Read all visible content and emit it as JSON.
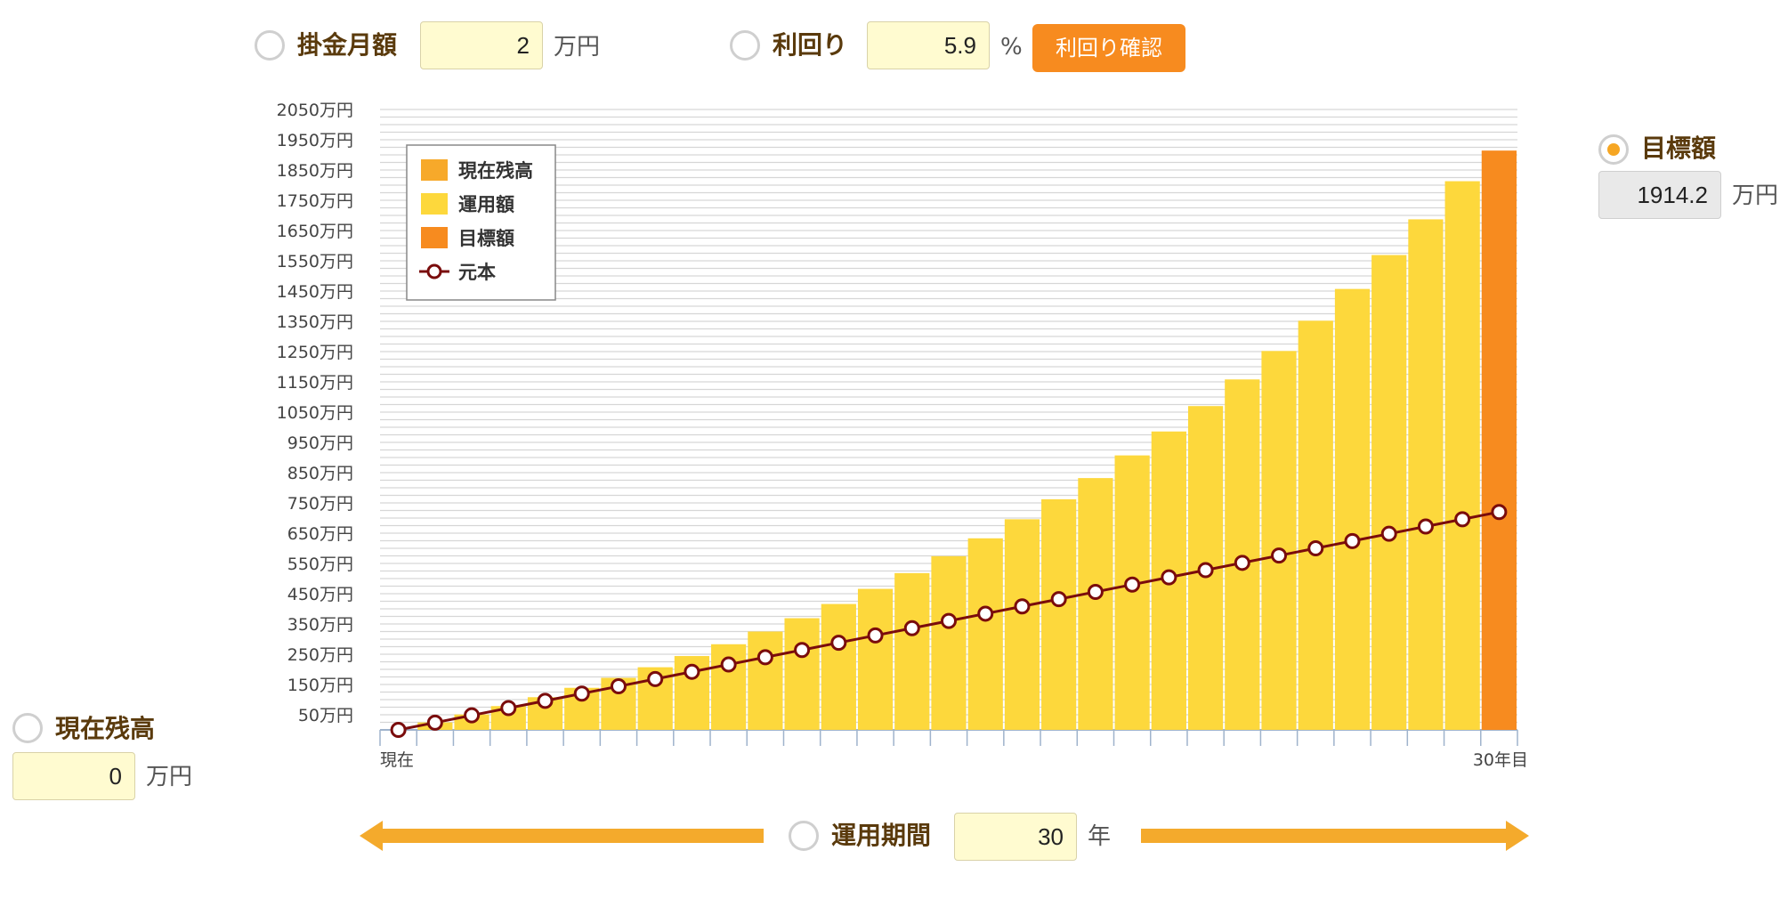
{
  "controls": {
    "monthly": {
      "label": "掛金月額",
      "value": "2",
      "unit": "万円"
    },
    "rate": {
      "label": "利回り",
      "value": "5.9",
      "unit": "%",
      "check_button": "利回り確認"
    },
    "target": {
      "label": "目標額",
      "value": "1914.2",
      "unit": "万円",
      "selected": true
    },
    "current": {
      "label": "現在残高",
      "value": "0",
      "unit": "万円"
    },
    "period": {
      "label": "運用期間",
      "value": "30",
      "unit": "年"
    }
  },
  "colors": {
    "current_balance": "#f7a92a",
    "managed": "#fdd83c",
    "target": "#f78b1f",
    "principal": "#7a0c0c",
    "arrow": "#f4aa2c",
    "radio_selected": "#f6a623"
  },
  "icons": [
    "radio-icon",
    "arrow-left-icon",
    "arrow-right-icon"
  ],
  "chart_data": {
    "type": "bar",
    "y_unit": "万円",
    "ylim": [
      0,
      2050
    ],
    "yticks": [
      50,
      150,
      250,
      350,
      450,
      550,
      650,
      750,
      850,
      950,
      1050,
      1150,
      1250,
      1350,
      1450,
      1550,
      1650,
      1750,
      1850,
      1950,
      2050
    ],
    "ytick_labels": [
      "50万円",
      "150万円",
      "250万円",
      "350万円",
      "450万円",
      "550万円",
      "650万円",
      "750万円",
      "850万円",
      "950万円",
      "1050万円",
      "1150万円",
      "1250万円",
      "1350万円",
      "1450万円",
      "1550万円",
      "1650万円",
      "1750万円",
      "1850万円",
      "1950万円",
      "2050万円"
    ],
    "grid": true,
    "legend_position": "top-left",
    "x_first_label": "現在",
    "x_last_label": "30年目",
    "categories": [
      0,
      1,
      2,
      3,
      4,
      5,
      6,
      7,
      8,
      9,
      10,
      11,
      12,
      13,
      14,
      15,
      16,
      17,
      18,
      19,
      20,
      21,
      22,
      23,
      24,
      25,
      26,
      27,
      28,
      29,
      30
    ],
    "series": [
      {
        "name": "現在残高",
        "kind": "bar",
        "values": [
          0,
          0,
          0,
          0,
          0,
          0,
          0,
          0,
          0,
          0,
          0,
          0,
          0,
          0,
          0,
          0,
          0,
          0,
          0,
          0,
          0,
          0,
          0,
          0,
          0,
          0,
          0,
          0,
          0,
          0,
          0
        ]
      },
      {
        "name": "運用額",
        "kind": "bar",
        "values": [
          0,
          24.7,
          50.9,
          78.6,
          108,
          139,
          172,
          207,
          244,
          283,
          325,
          369,
          416,
          466,
          518,
          574,
          633,
          696,
          762,
          832,
          907,
          986,
          1070,
          1158,
          1252,
          1352,
          1457,
          1569,
          1687,
          1813,
          null
        ]
      },
      {
        "name": "目標額",
        "kind": "bar",
        "values": [
          null,
          null,
          null,
          null,
          null,
          null,
          null,
          null,
          null,
          null,
          null,
          null,
          null,
          null,
          null,
          null,
          null,
          null,
          null,
          null,
          null,
          null,
          null,
          null,
          null,
          null,
          null,
          null,
          null,
          null,
          1914.2
        ]
      },
      {
        "name": "元本",
        "kind": "line",
        "values": [
          0,
          24,
          48,
          72,
          96,
          120,
          144,
          168,
          192,
          216,
          240,
          264,
          288,
          312,
          336,
          360,
          384,
          408,
          432,
          456,
          480,
          504,
          528,
          552,
          576,
          600,
          624,
          648,
          672,
          696,
          720
        ]
      }
    ]
  }
}
